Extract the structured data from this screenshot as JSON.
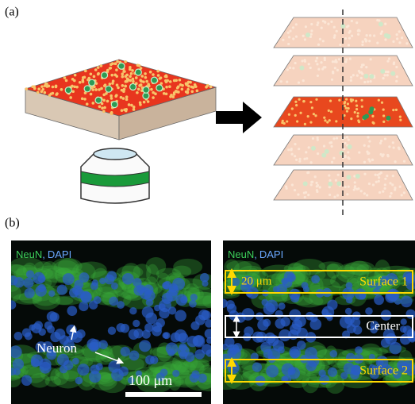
{
  "panel_a": {
    "label": "(a)"
  },
  "panel_b": {
    "label": "(b)",
    "left": {
      "stain": [
        "NeuN",
        ",",
        "DAPI"
      ],
      "annotation": "Neuron",
      "scale_bar": "100 μm"
    },
    "right": {
      "stain": [
        "NeuN",
        ",",
        "DAPI"
      ],
      "thickness": "20 μm",
      "regions": [
        "Surface 1",
        "Center",
        "Surface 2"
      ]
    }
  }
}
